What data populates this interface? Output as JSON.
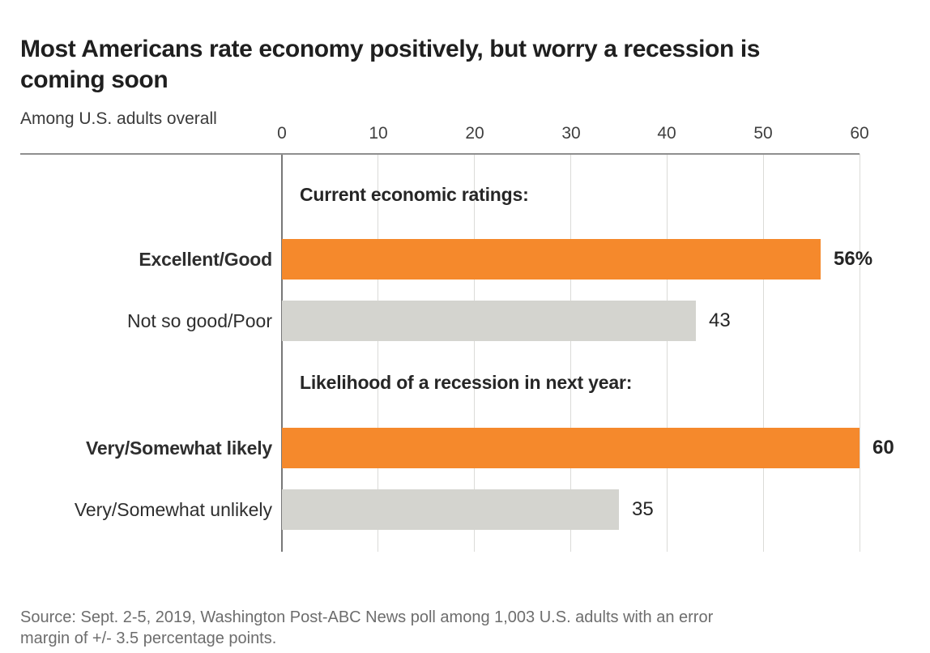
{
  "header": {
    "title_lines": [
      "Most Americans rate economy positively, but worry a recession is",
      "coming soon"
    ],
    "subtitle": "Among U.S. adults overall"
  },
  "chart_data": {
    "type": "bar",
    "orientation": "horizontal",
    "title": "Most Americans rate economy positively, but worry a recession is coming soon",
    "subtitle": "Among U.S. adults overall",
    "xlabel": "",
    "ylabel": "",
    "xlim": [
      0,
      60
    ],
    "ticks": [
      0,
      10,
      20,
      30,
      40,
      50,
      60
    ],
    "grid": true,
    "legend": false,
    "units": "percent of U.S. adults",
    "groups": [
      {
        "header": "Current economic ratings:",
        "bars": [
          {
            "label": "Excellent/Good",
            "value": 56,
            "value_label": "56%",
            "color": "orange",
            "emphasis": true
          },
          {
            "label": "Not so good/Poor",
            "value": 43,
            "value_label": "43",
            "color": "gray",
            "emphasis": false
          }
        ]
      },
      {
        "header": "Likelihood of a recession in next year:",
        "bars": [
          {
            "label": "Very/Somewhat likely",
            "value": 60,
            "value_label": "60",
            "color": "orange",
            "emphasis": true
          },
          {
            "label": "Very/Somewhat unlikely",
            "value": 35,
            "value_label": "35",
            "color": "gray",
            "emphasis": false
          }
        ]
      }
    ],
    "colors": {
      "orange": "#F5892C",
      "gray": "#D4D4CF"
    }
  },
  "footer": {
    "source_lines": [
      "Source: Sept. 2-5, 2019, Washington Post-ABC News poll among 1,003 U.S. adults with an error",
      "margin of +/- 3.5 percentage points."
    ]
  }
}
